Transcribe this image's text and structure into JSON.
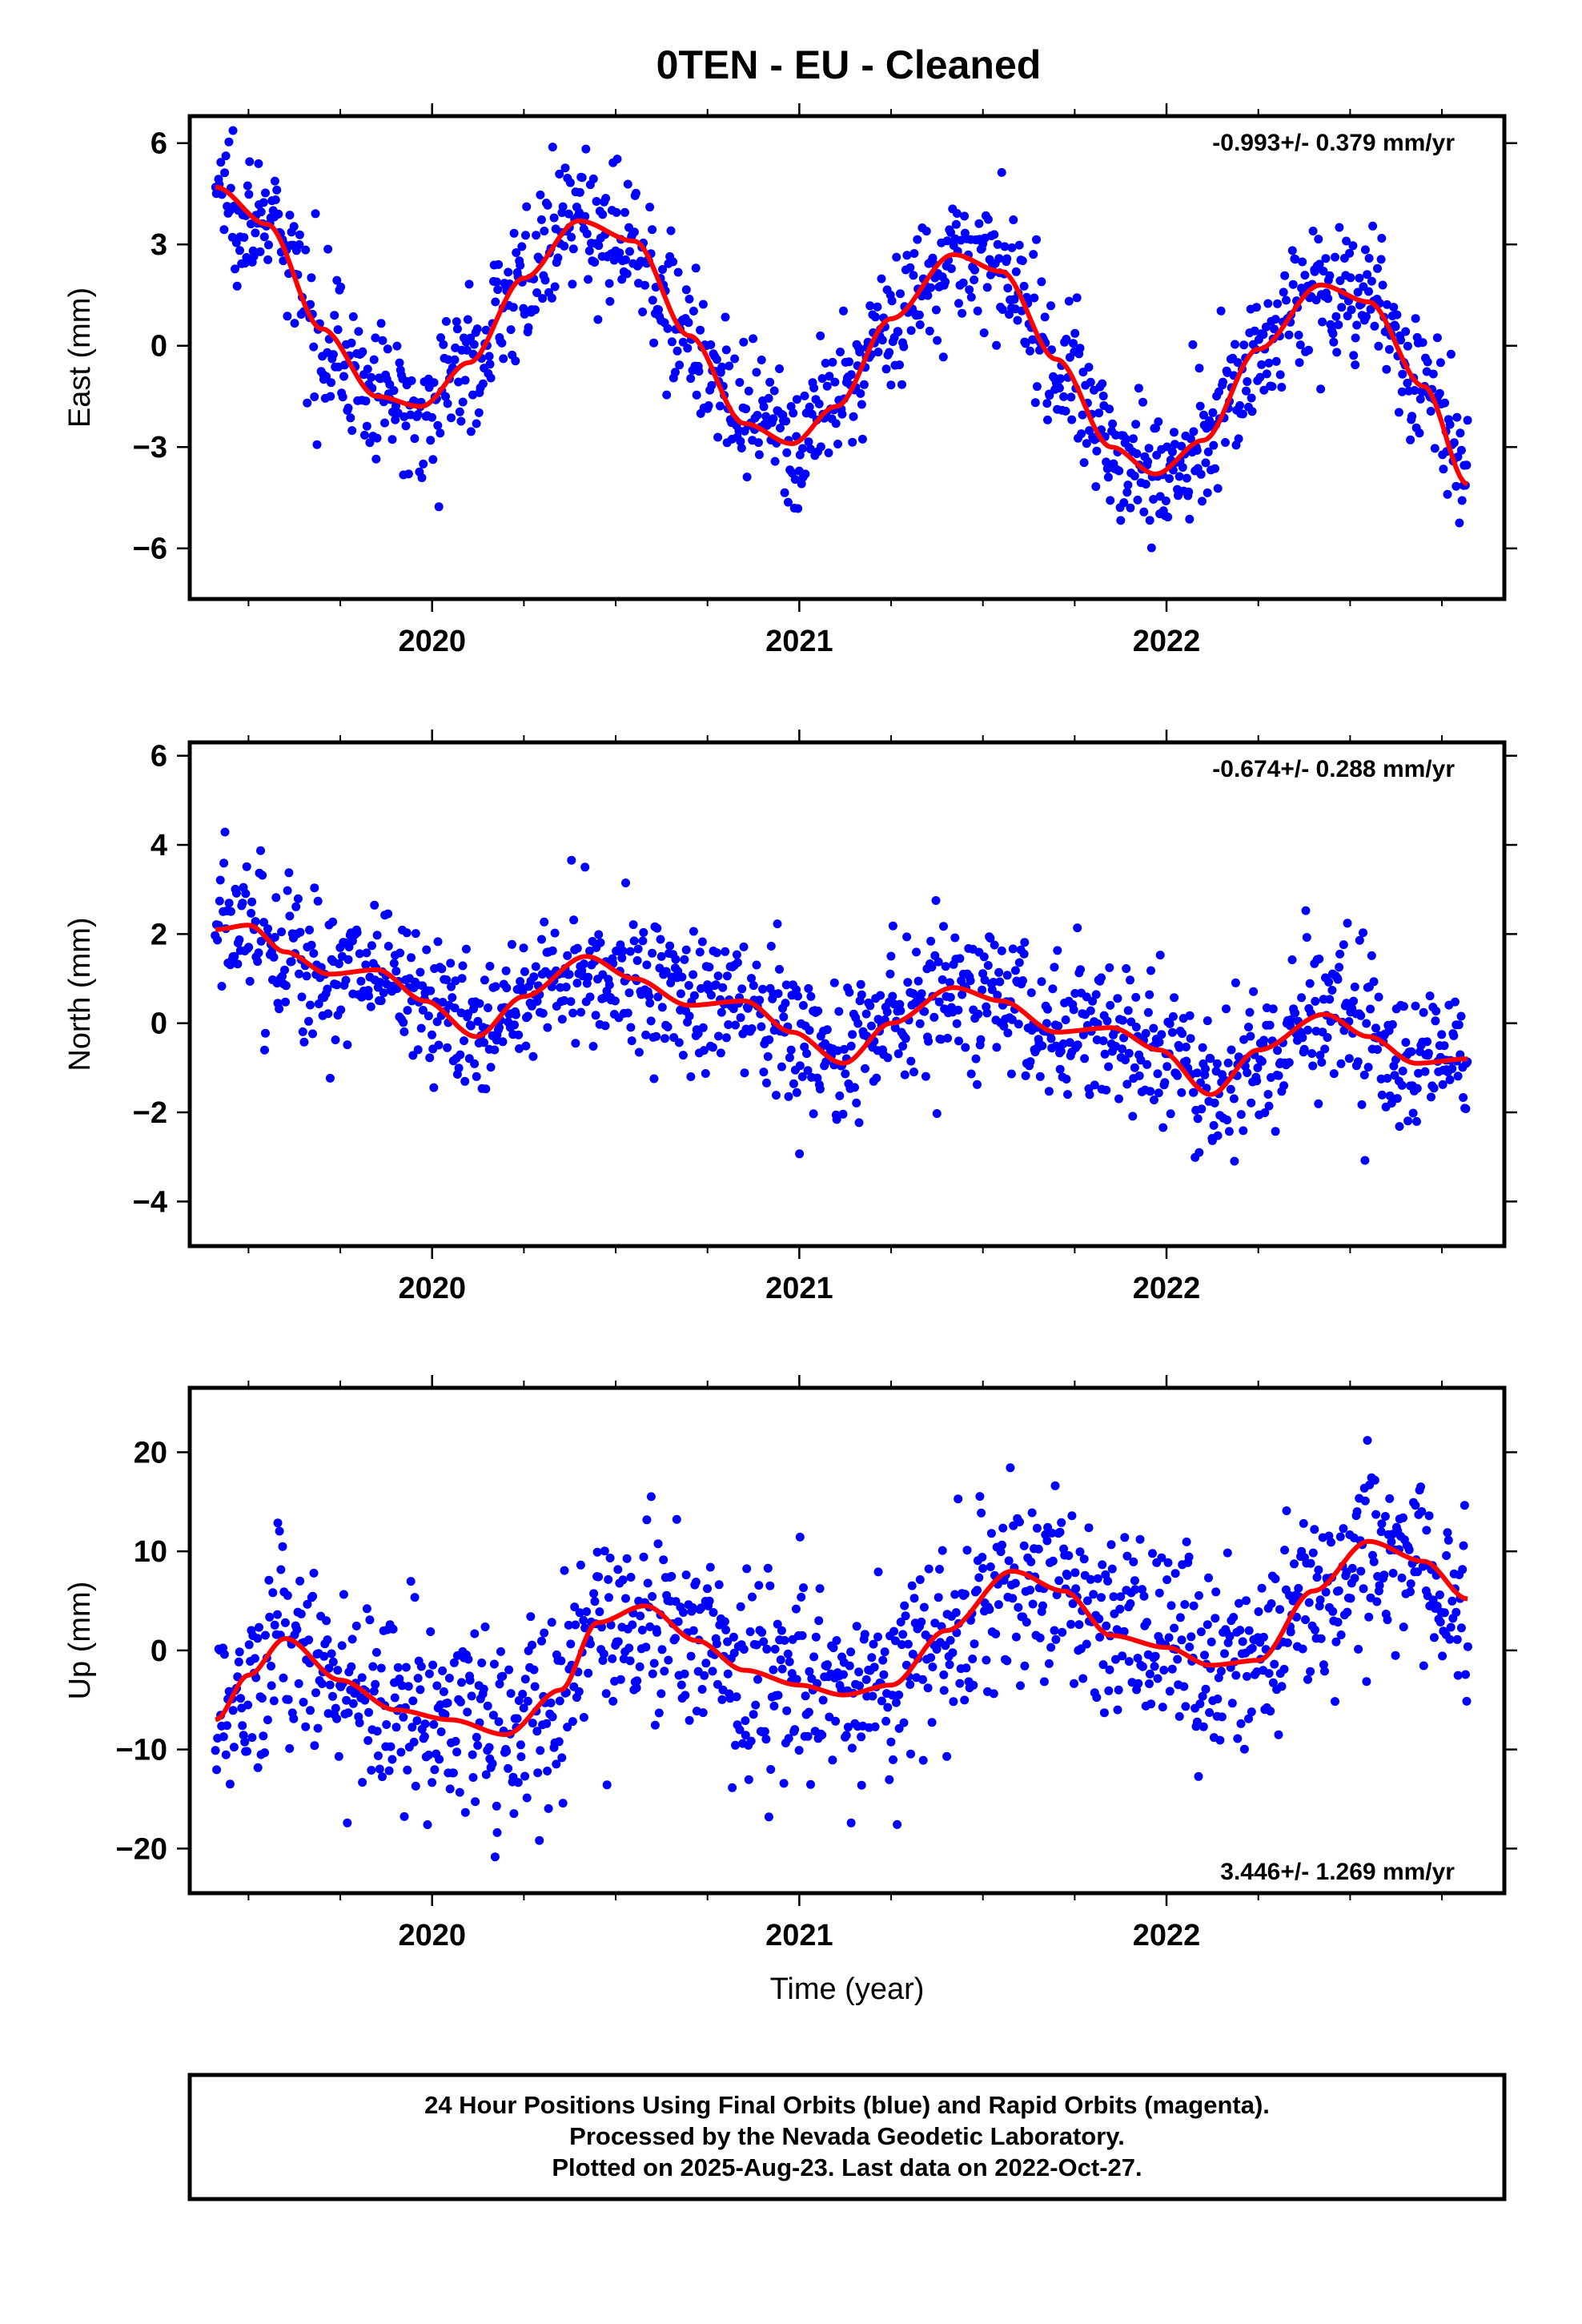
{
  "title": "0TEN  - EU - Cleaned",
  "footer": {
    "line1": "24 Hour Positions Using Final Orbits (blue) and Rapid Orbits (magenta).",
    "line2": "Processed by the Nevada Geodetic Laboratory.",
    "line3": "Plotted on 2025-Aug-23. Last data on 2022-Oct-27."
  },
  "colors": {
    "points": "#0000ff",
    "fit": "#ff0000",
    "frame": "#000000"
  },
  "chart_data": [
    {
      "type": "scatter",
      "component": "east",
      "ylabel": "East (mm)",
      "xlabel": "",
      "rate": "-0.993+/- 0.379 mm/yr",
      "rate_position": "top-right",
      "xlim": [
        2019.34,
        2022.92
      ],
      "ylim": [
        -7.5,
        6.8
      ],
      "xticks": [
        2020,
        2021,
        2022
      ],
      "yticks": [
        -6,
        -3,
        0,
        3,
        6
      ],
      "yticklabels": [
        "−6",
        "−3",
        "0",
        "3",
        "6"
      ],
      "data_start": 2019.41,
      "data_end": 2022.82,
      "fit": {
        "x": [
          2019.41,
          2019.55,
          2019.7,
          2019.85,
          2019.97,
          2020.1,
          2020.25,
          2020.4,
          2020.55,
          2020.7,
          2020.85,
          2020.98,
          2021.1,
          2021.25,
          2021.42,
          2021.55,
          2021.7,
          2021.85,
          2021.97,
          2022.1,
          2022.25,
          2022.42,
          2022.55,
          2022.7,
          2022.82
        ],
        "y": [
          4.7,
          3.6,
          0.5,
          -1.5,
          -1.8,
          -0.5,
          2.0,
          3.7,
          3.1,
          0.3,
          -2.3,
          -2.9,
          -1.8,
          0.8,
          2.7,
          2.2,
          -0.4,
          -3.0,
          -3.8,
          -2.8,
          -0.1,
          1.8,
          1.3,
          -1.2,
          -4.1
        ]
      },
      "noise": 1.0
    },
    {
      "type": "scatter",
      "component": "north",
      "ylabel": "North (mm)",
      "xlabel": "",
      "rate": "-0.674+/- 0.288 mm/yr",
      "rate_position": "top-right",
      "xlim": [
        2019.34,
        2022.92
      ],
      "ylim": [
        -5.0,
        6.3
      ],
      "xticks": [
        2020,
        2021,
        2022
      ],
      "yticks": [
        -4,
        -2,
        0,
        2,
        4,
        6
      ],
      "yticklabels": [
        "−4",
        "−2",
        "0",
        "2",
        "4",
        "6"
      ],
      "data_start": 2019.41,
      "data_end": 2022.82,
      "fit": {
        "x": [
          2019.41,
          2019.5,
          2019.6,
          2019.72,
          2019.85,
          2019.98,
          2020.12,
          2020.25,
          2020.42,
          2020.55,
          2020.7,
          2020.85,
          2020.98,
          2021.12,
          2021.25,
          2021.42,
          2021.55,
          2021.7,
          2021.85,
          2021.98,
          2022.12,
          2022.25,
          2022.43,
          2022.55,
          2022.68,
          2022.82
        ],
        "y": [
          2.1,
          2.2,
          1.6,
          1.1,
          1.2,
          0.5,
          -0.3,
          0.6,
          1.5,
          1.0,
          0.4,
          0.5,
          -0.2,
          -0.9,
          0.0,
          0.8,
          0.5,
          -0.2,
          -0.1,
          -0.6,
          -1.6,
          -0.6,
          0.2,
          -0.3,
          -0.9,
          -0.8
        ]
      },
      "noise": 0.85
    },
    {
      "type": "scatter",
      "component": "up",
      "ylabel": "Up (mm)",
      "xlabel": "Time (year)",
      "rate": "3.446+/- 1.269 mm/yr",
      "rate_position": "bottom-right",
      "xlim": [
        2019.34,
        2022.92
      ],
      "ylim": [
        -24.5,
        26.5
      ],
      "xticks": [
        2020,
        2021,
        2022
      ],
      "yticks": [
        -20,
        -10,
        0,
        10,
        20
      ],
      "yticklabels": [
        "−20",
        "−10",
        "0",
        "10",
        "20"
      ],
      "data_start": 2019.41,
      "data_end": 2022.82,
      "fit": {
        "x": [
          2019.41,
          2019.5,
          2019.6,
          2019.75,
          2019.9,
          2020.05,
          2020.2,
          2020.35,
          2020.45,
          2020.58,
          2020.72,
          2020.85,
          2021.0,
          2021.12,
          2021.25,
          2021.4,
          2021.58,
          2021.72,
          2021.85,
          2022.0,
          2022.12,
          2022.25,
          2022.4,
          2022.55,
          2022.7,
          2022.82
        ],
        "y": [
          -7.0,
          -2.5,
          1.2,
          -3.0,
          -6.0,
          -7.0,
          -8.5,
          -4.0,
          2.8,
          4.5,
          1.0,
          -2.0,
          -3.5,
          -4.5,
          -3.5,
          2.0,
          8.0,
          6.0,
          1.5,
          0.3,
          -1.5,
          -1.0,
          6.0,
          11.0,
          9.0,
          5.2
        ]
      },
      "noise": 5.0
    }
  ]
}
